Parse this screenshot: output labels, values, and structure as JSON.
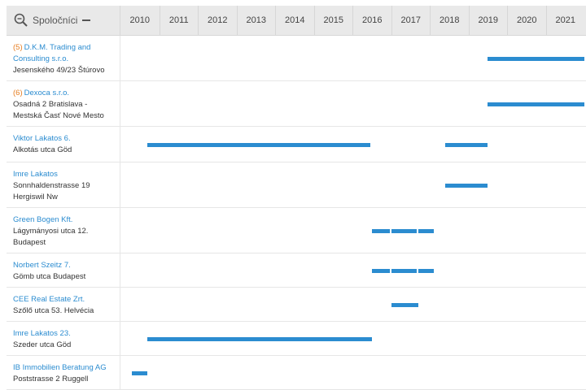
{
  "header": {
    "title": "Spoločníci",
    "years": [
      "2010",
      "2011",
      "2012",
      "2013",
      "2014",
      "2015",
      "2016",
      "2017",
      "2018",
      "2019",
      "2020",
      "2021"
    ]
  },
  "rows": [
    {
      "index": "(5)",
      "name": "D.K.M. Trading and Consulting s.r.o.",
      "address": "Jesenského 49/23 Štúrovo",
      "bars": [
        [
          2019.0,
          2021.5
        ]
      ]
    },
    {
      "index": "(6)",
      "name": "Dexoca s.r.o.",
      "address": "Osadná 2 Bratislava - Mestská Časť Nové Mesto",
      "bars": [
        [
          2019.0,
          2021.5
        ]
      ]
    },
    {
      "index": "",
      "name": "Viktor Lakatos 6.",
      "address": "Alkotás utca Göd",
      "bars": [
        [
          2010.2,
          2016.0
        ],
        [
          2017.9,
          2019.0
        ]
      ]
    },
    {
      "index": "",
      "name": "Imre Lakatos",
      "address": "Sonnhaldenstrasse 19 Hergiswil Nw",
      "bars": [
        [
          2017.9,
          2019.0
        ]
      ]
    },
    {
      "index": "",
      "name": "Green Bogen Kft.",
      "address": "Lágymányosi utca 12. Budapest",
      "bars": [
        [
          2016.0,
          2016.5
        ],
        [
          2016.5,
          2017.2
        ],
        [
          2017.2,
          2017.6
        ]
      ]
    },
    {
      "index": "",
      "name": "Norbert Szeitz 7.",
      "address": "Gömb utca Budapest",
      "bars": [
        [
          2016.0,
          2016.5
        ],
        [
          2016.5,
          2017.2
        ],
        [
          2017.2,
          2017.6
        ]
      ]
    },
    {
      "index": "",
      "name": "CEE Real Estate Zrt.",
      "address": "Szőlő utca 53. Helvécia",
      "bars": [
        [
          2016.5,
          2017.2
        ]
      ]
    },
    {
      "index": "",
      "name": "Imre Lakatos 23.",
      "address": "Szeder utca Göd",
      "bars": [
        [
          2010.2,
          2016.0
        ]
      ]
    },
    {
      "index": "",
      "name": "IB Immobilien Beratung AG",
      "address": "Poststrasse 2 Ruggell",
      "bars": [
        [
          2009.8,
          2010.2
        ]
      ]
    }
  ],
  "colors": {
    "bar": "#2b8cd0",
    "name_link": "#2b8cd0",
    "index": "#e67e22"
  }
}
